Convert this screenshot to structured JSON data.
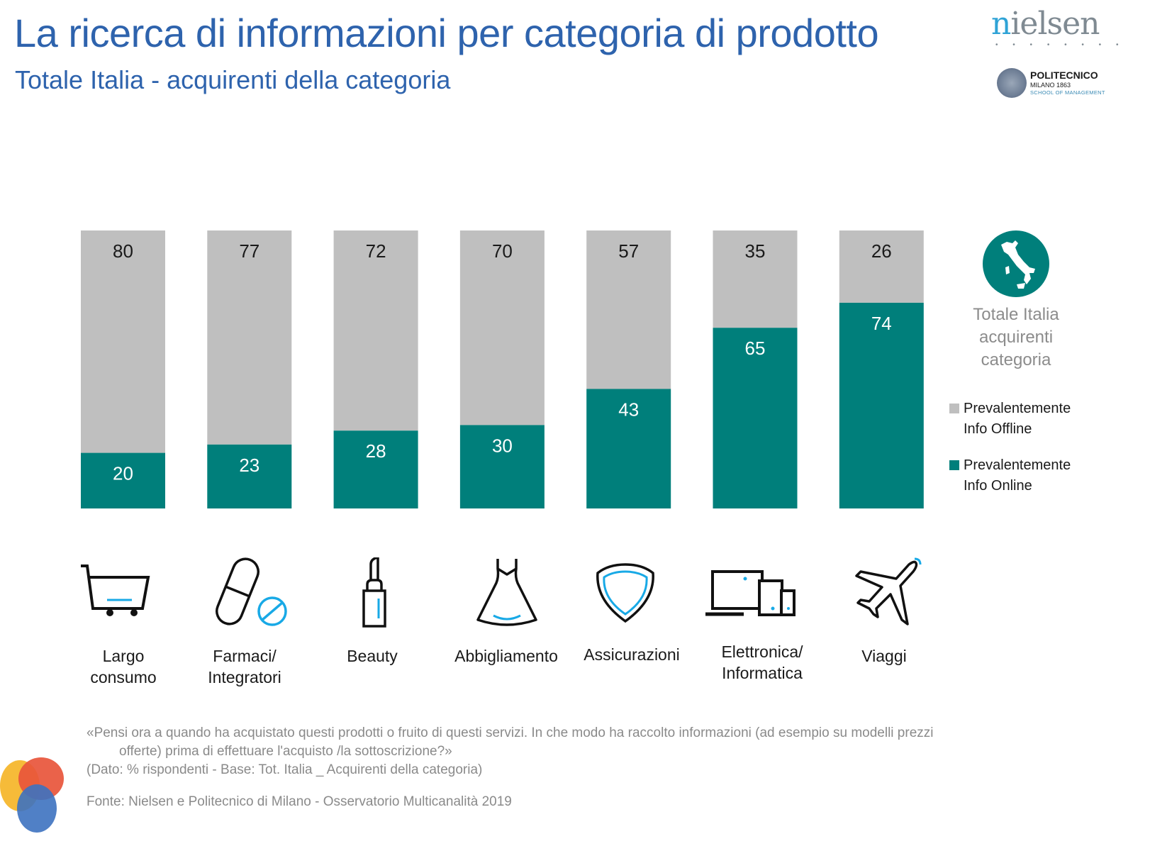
{
  "header": {
    "title": "La ricerca di informazioni per categoria di prodotto",
    "subtitle": "Totale Italia - acquirenti della categoria"
  },
  "logos": {
    "nielsen_first": "n",
    "nielsen_rest": "ielsen",
    "nielsen_dots": "• • • • • • • •",
    "polimi_name": "POLITECNICO",
    "polimi_city": "MILANO 1863",
    "polimi_school": "SCHOOL OF MANAGEMENT"
  },
  "colors": {
    "offline": "#bfbfbf",
    "online": "#007f7b",
    "title": "#2e63ad",
    "icon_accent": "#18a9e6"
  },
  "side_panel": {
    "icon": "italy-map-icon",
    "note_lines": [
      "Totale Italia",
      "acquirenti",
      "categoria"
    ]
  },
  "chart_data": {
    "type": "bar",
    "stacked": true,
    "orientation": "vertical",
    "title": "La ricerca di informazioni per categoria di prodotto",
    "subtitle": "Totale Italia - acquirenti della categoria",
    "unit": "% rispondenti",
    "ylim": [
      0,
      100
    ],
    "grid": false,
    "legend_position": "right",
    "categories": [
      "Largo consumo",
      "Farmaci/ Integratori",
      "Beauty",
      "Abbigliamento",
      "Assicurazioni",
      "Elettronica/ Informatica",
      "Viaggi"
    ],
    "category_label_lines": [
      [
        "Largo",
        "consumo"
      ],
      [
        "Farmaci/",
        "Integratori"
      ],
      [
        "Beauty"
      ],
      [
        "Abbigliamento"
      ],
      [
        "Assicurazioni"
      ],
      [
        "Elettronica/",
        "Informatica"
      ],
      [
        "Viaggi"
      ]
    ],
    "category_icons": [
      "shopping-cart-icon",
      "pill-icon",
      "lipstick-icon",
      "dress-icon",
      "shield-icon",
      "devices-icon",
      "airplane-icon"
    ],
    "series": [
      {
        "name": "Prevalentemente Info Online",
        "legend_lines": [
          "Prevalentemente",
          "Info Online"
        ],
        "color": "#007f7b",
        "label_color": "#ffffff",
        "values": [
          20,
          23,
          28,
          30,
          43,
          65,
          74
        ]
      },
      {
        "name": "Prevalentemente Info Offline",
        "legend_lines": [
          "Prevalentemente",
          "Info Offline"
        ],
        "color": "#bfbfbf",
        "label_color": "#1a1a1a",
        "values": [
          80,
          77,
          72,
          70,
          57,
          35,
          26
        ]
      }
    ]
  },
  "footnote": {
    "question_line1": "«Pensi ora a quando ha acquistato questi prodotti o fruito di questi servizi. In che modo ha raccolto informazioni (ad esempio su modelli prezzi",
    "question_line2": "offerte) prima di effettuare l'acquisto /la sottoscrizione?»",
    "base": "(Dato: % rispondenti - Base: Tot. Italia _ Acquirenti della categoria)",
    "source": "Fonte: Nielsen e Politecnico di Milano - Osservatorio Multicanalità 2019"
  }
}
